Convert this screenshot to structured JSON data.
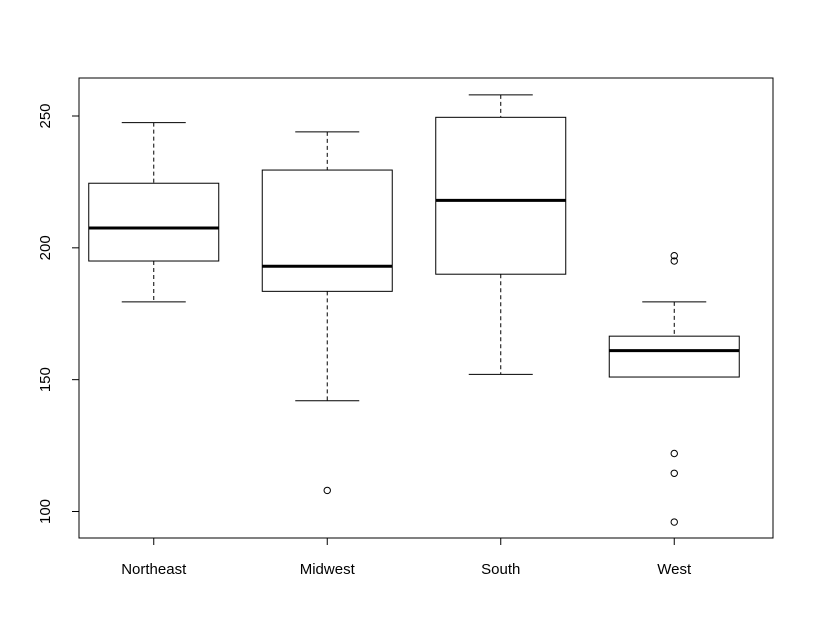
{
  "chart_data": {
    "type": "boxplot",
    "title": "",
    "xlabel": "",
    "ylabel": "",
    "ylim": [
      90,
      265
    ],
    "yticks": [
      100,
      150,
      200,
      250
    ],
    "ytick_labels": [
      "100",
      "150",
      "200",
      "250"
    ],
    "categories": [
      "Northeast",
      "Midwest",
      "South",
      "West"
    ],
    "boxes": [
      {
        "name": "Northeast",
        "whisker_low": 179.5,
        "q1": 195,
        "median": 207.5,
        "q3": 224.5,
        "whisker_high": 247.5,
        "outliers": []
      },
      {
        "name": "Midwest",
        "whisker_low": 142,
        "q1": 183.5,
        "median": 193,
        "q3": 229.5,
        "whisker_high": 244,
        "outliers": [
          108
        ]
      },
      {
        "name": "South",
        "whisker_low": 152,
        "q1": 190,
        "median": 218,
        "q3": 249.5,
        "whisker_high": 258,
        "outliers": []
      },
      {
        "name": "West",
        "whisker_low": 151,
        "q1": 151,
        "median": 161,
        "q3": 166.5,
        "whisker_high": 179.5,
        "outliers": [
          197,
          195,
          122,
          114.5,
          96
        ]
      }
    ],
    "grid": false,
    "legend": "none"
  }
}
